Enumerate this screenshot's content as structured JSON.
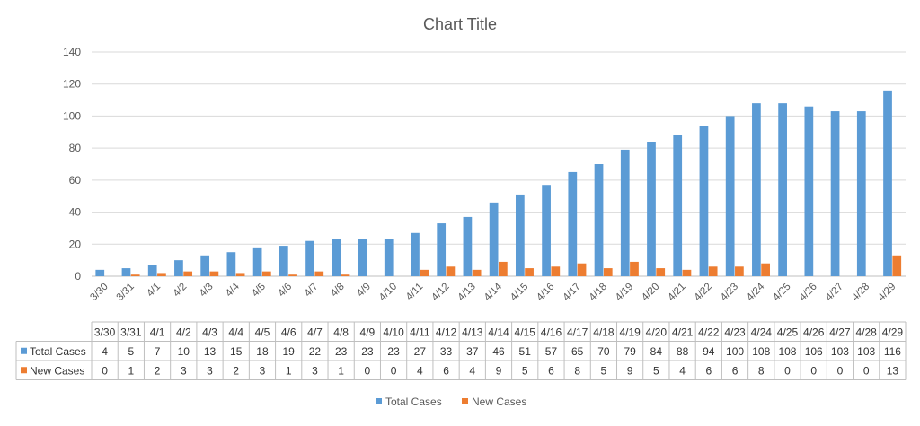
{
  "chart_data": {
    "type": "bar",
    "title": "Chart Title",
    "xlabel": "",
    "ylabel": "",
    "ylim": [
      0,
      140
    ],
    "yticks": [
      0,
      20,
      40,
      60,
      80,
      100,
      120,
      140
    ],
    "grid": true,
    "legend": "bottom",
    "data_table": true,
    "categories": [
      "3/30",
      "3/31",
      "4/1",
      "4/2",
      "4/3",
      "4/4",
      "4/5",
      "4/6",
      "4/7",
      "4/8",
      "4/9",
      "4/10",
      "4/11",
      "4/12",
      "4/13",
      "4/14",
      "4/15",
      "4/16",
      "4/17",
      "4/18",
      "4/19",
      "4/20",
      "4/21",
      "4/22",
      "4/23",
      "4/24",
      "4/25",
      "4/26",
      "4/27",
      "4/28",
      "4/29"
    ],
    "series": [
      {
        "name": "Total Cases",
        "color": "#5B9BD5",
        "values": [
          4,
          5,
          7,
          10,
          13,
          15,
          18,
          19,
          22,
          23,
          23,
          23,
          27,
          33,
          37,
          46,
          51,
          57,
          65,
          70,
          79,
          84,
          88,
          94,
          100,
          108,
          108,
          106,
          103,
          103,
          116
        ]
      },
      {
        "name": "New Cases",
        "color": "#ED7D31",
        "values": [
          0,
          1,
          2,
          3,
          3,
          2,
          3,
          1,
          3,
          1,
          0,
          0,
          4,
          6,
          4,
          9,
          5,
          6,
          8,
          5,
          9,
          5,
          4,
          6,
          6,
          8,
          0,
          0,
          0,
          0,
          13
        ]
      }
    ]
  }
}
